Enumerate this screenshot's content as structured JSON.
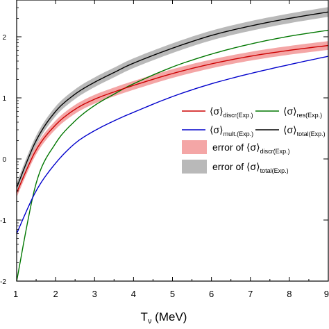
{
  "chart_data": {
    "type": "line",
    "xlabel": "T",
    "xlabel_sub": "ν",
    "xlabel_unit": " (MeV)",
    "ylabel": "",
    "x_scale": "linear",
    "y_scale": "log",
    "xlim": [
      1,
      9
    ],
    "ylim": [
      0.01,
      400
    ],
    "x_ticks": [
      "1",
      "2",
      "3",
      "4",
      "5",
      "6",
      "7",
      "8",
      "9"
    ],
    "x_tick_values": [
      1,
      2,
      3,
      4,
      5,
      6,
      7,
      8,
      9
    ],
    "y_tick_values": [
      0.01,
      0.1,
      1,
      10,
      100
    ],
    "y_ticks": [
      "-2",
      "-1",
      "0",
      "1",
      "2"
    ],
    "grid": false,
    "legend_position": "middle-right",
    "x": [
      1,
      1.5,
      2,
      2.5,
      3,
      3.5,
      4,
      5,
      6,
      7,
      8,
      9
    ],
    "series": [
      {
        "key": "discr",
        "name": "⟨σ⟩",
        "name_sub": "discr(Exp.)",
        "color": "#cc0000",
        "values": [
          0.28,
          1.4,
          3.6,
          6.5,
          9.5,
          12.5,
          16,
          25,
          36,
          48,
          60,
          72
        ]
      },
      {
        "key": "res",
        "name": "⟨σ⟩",
        "name_sub": "res(Exp.)",
        "color": "#007700",
        "values": [
          0.01,
          0.4,
          1.8,
          4.2,
          7.5,
          11.5,
          17,
          32,
          52,
          76,
          102,
          128
        ]
      },
      {
        "key": "mult",
        "name": "⟨σ⟩",
        "name_sub": "mult.(Exp.)",
        "color": "#0000cc",
        "values": [
          0.06,
          0.3,
          0.85,
          1.8,
          2.9,
          4.2,
          5.8,
          10.5,
          17,
          25,
          35,
          48
        ]
      },
      {
        "key": "total",
        "name": "⟨σ⟩",
        "name_sub": "total(Exp.)",
        "color": "#000000",
        "values": [
          0.34,
          2,
          6,
          11.5,
          18,
          26,
          37,
          65,
          105,
          150,
          200,
          255
        ]
      }
    ],
    "bands": [
      {
        "key": "discr_err",
        "label_prefix": "error of ",
        "name": "⟨σ⟩",
        "name_sub": "discr(Exp.)",
        "color": "#f4a6a6",
        "around": "discr",
        "factor": 1.18
      },
      {
        "key": "total_err",
        "label_prefix": "error of ",
        "name": "⟨σ⟩",
        "name_sub": "total(Exp.)",
        "color": "#b9b9b9",
        "around": "total",
        "factor": 1.2
      }
    ]
  }
}
